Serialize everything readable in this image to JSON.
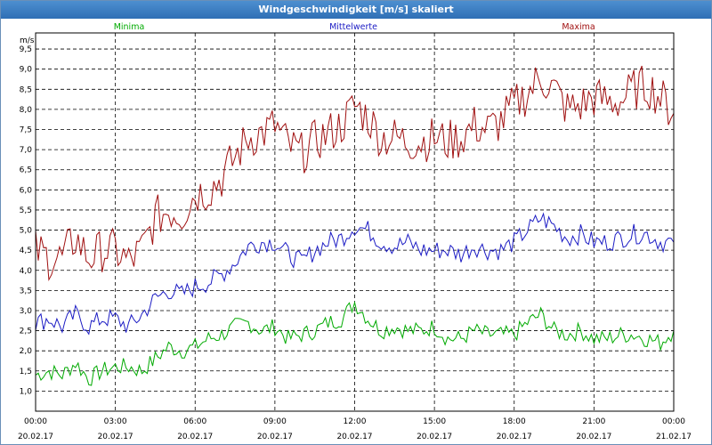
{
  "window": {
    "title": "Windgeschwindigkeit [m/s] skaliert"
  },
  "chart_data": {
    "type": "line",
    "title": "Windgeschwindigkeit [m/s] skaliert",
    "ylabel": "m/s",
    "ylim": [
      0.5,
      9.9
    ],
    "xlim": [
      0,
      24
    ],
    "yticks": [
      "1,0",
      "1,5",
      "2,0",
      "2,5",
      "3,0",
      "3,5",
      "4,0",
      "4,5",
      "5,0",
      "5,5",
      "6,0",
      "6,5",
      "7,0",
      "7,5",
      "8,0",
      "8,5",
      "9,0",
      "9,5"
    ],
    "xticks": [
      {
        "time": "00:00",
        "date": "20.02.17"
      },
      {
        "time": "03:00",
        "date": "20.02.17"
      },
      {
        "time": "06:00",
        "date": "20.02.17"
      },
      {
        "time": "09:00",
        "date": "20.02.17"
      },
      {
        "time": "12:00",
        "date": "20.02.17"
      },
      {
        "time": "15:00",
        "date": "20.02.17"
      },
      {
        "time": "18:00",
        "date": "20.02.17"
      },
      {
        "time": "21:00",
        "date": "20.02.17"
      },
      {
        "time": "00:00",
        "date": "21.02.17"
      }
    ],
    "grid": true,
    "series": [
      {
        "name": "Minima",
        "color": "#00aa00",
        "x": [
          0,
          0.5,
          1,
          1.5,
          2,
          2.5,
          3,
          3.5,
          4,
          4.5,
          5,
          5.5,
          6,
          6.5,
          7,
          7.5,
          8,
          8.5,
          9,
          9.5,
          10,
          10.5,
          11,
          11.5,
          12,
          12.5,
          13,
          13.5,
          14,
          14.5,
          15,
          15.5,
          16,
          16.5,
          17,
          17.5,
          18,
          18.5,
          19,
          19.5,
          20,
          20.5,
          21,
          21.5,
          22,
          22.5,
          23,
          23.5,
          24
        ],
        "values": [
          1.4,
          1.5,
          1.4,
          1.7,
          1.3,
          1.5,
          1.6,
          1.6,
          1.5,
          1.8,
          2.1,
          2.0,
          2.1,
          2.3,
          2.4,
          2.6,
          2.7,
          2.5,
          2.6,
          2.3,
          2.4,
          2.5,
          2.7,
          2.8,
          3.2,
          2.8,
          2.5,
          2.6,
          2.5,
          2.5,
          2.6,
          2.3,
          2.3,
          2.5,
          2.4,
          2.4,
          2.4,
          2.7,
          2.9,
          2.5,
          2.4,
          2.5,
          2.3,
          2.3,
          2.4,
          2.4,
          2.3,
          2.2,
          2.5
        ]
      },
      {
        "name": "Mittelwerte",
        "color": "#1c1cc4",
        "x": [
          0,
          0.5,
          1,
          1.5,
          2,
          2.5,
          3,
          3.5,
          4,
          4.5,
          5,
          5.5,
          6,
          6.5,
          7,
          7.5,
          8,
          8.5,
          9,
          9.5,
          10,
          10.5,
          11,
          11.5,
          12,
          12.5,
          13,
          13.5,
          14,
          14.5,
          15,
          15.5,
          16,
          16.5,
          17,
          17.5,
          18,
          18.5,
          19,
          19.5,
          20,
          20.5,
          21,
          21.5,
          22,
          22.5,
          23,
          23.5,
          24
        ],
        "values": [
          2.7,
          2.8,
          2.6,
          2.9,
          2.6,
          2.8,
          2.8,
          2.6,
          2.9,
          3.3,
          3.5,
          3.4,
          3.6,
          3.7,
          3.9,
          4.2,
          4.6,
          4.7,
          4.7,
          4.4,
          4.2,
          4.5,
          4.7,
          4.8,
          5.1,
          5.0,
          4.7,
          4.6,
          4.7,
          4.5,
          4.5,
          4.5,
          4.4,
          4.6,
          4.5,
          4.5,
          4.7,
          5.0,
          5.3,
          5.1,
          4.8,
          4.9,
          4.7,
          4.7,
          4.8,
          4.9,
          4.9,
          4.7,
          4.7
        ]
      },
      {
        "name": "Maxima",
        "color": "#a01010",
        "x": [
          0,
          0.5,
          1,
          1.5,
          2,
          2.5,
          3,
          3.5,
          4,
          4.5,
          5,
          5.5,
          6,
          6.5,
          7,
          7.5,
          8,
          8.5,
          9,
          9.5,
          10,
          10.5,
          11,
          11.5,
          12,
          12.5,
          13,
          13.5,
          14,
          14.5,
          15,
          15.5,
          16,
          16.5,
          17,
          17.5,
          18,
          18.5,
          19,
          19.5,
          20,
          20.5,
          21,
          21.5,
          22,
          22.5,
          23,
          23.5,
          24
        ],
        "values": [
          4.5,
          4.3,
          4.3,
          4.8,
          4.3,
          4.5,
          4.5,
          4.2,
          4.5,
          5.3,
          5.5,
          5.4,
          5.9,
          6.0,
          6.3,
          6.8,
          7.3,
          7.4,
          7.6,
          7.1,
          6.9,
          7.2,
          7.4,
          7.6,
          8.1,
          7.8,
          7.3,
          7.3,
          7.2,
          7.2,
          7.3,
          7.2,
          7.3,
          7.6,
          7.5,
          7.7,
          8.1,
          8.4,
          8.8,
          8.5,
          8.0,
          8.1,
          8.3,
          8.2,
          8.2,
          8.5,
          8.6,
          8.3,
          7.9
        ]
      }
    ]
  }
}
